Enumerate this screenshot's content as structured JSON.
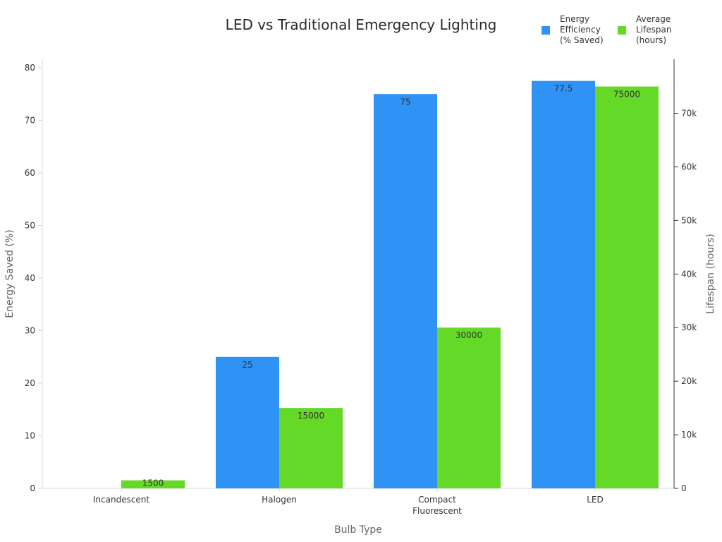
{
  "chart_data": {
    "type": "bar",
    "title": "LED vs Traditional Emergency Lighting",
    "xlabel": "Bulb Type",
    "ylabel": "Energy Saved (%)",
    "y2label": "Lifespan (hours)",
    "categories": [
      [
        "Incandescent"
      ],
      [
        "Halogen"
      ],
      [
        "Compact",
        "Fluorescent"
      ],
      [
        "LED"
      ]
    ],
    "ylim": [
      0,
      80
    ],
    "y2lim": [
      0,
      78500
    ],
    "yticks": [
      0,
      10,
      20,
      30,
      40,
      50,
      60,
      70,
      80
    ],
    "y2ticks": [
      0,
      10000,
      20000,
      30000,
      40000,
      50000,
      60000,
      70000
    ],
    "y2tick_labels": [
      "0",
      "10k",
      "20k",
      "30k",
      "40k",
      "50k",
      "60k",
      "70k"
    ],
    "legend_position": "top-right",
    "series": [
      {
        "name": [
          "Energy",
          "Efficiency",
          "(% Saved)"
        ],
        "axis": "left",
        "color": "#2f93f6",
        "values": [
          0,
          25,
          75,
          77.5
        ],
        "labels": [
          "",
          "25",
          "75",
          "77.5"
        ]
      },
      {
        "name": [
          "Average",
          "Lifespan",
          "(hours)"
        ],
        "axis": "right",
        "color": "#65d927",
        "values": [
          1500,
          15000,
          30000,
          75000
        ],
        "labels": [
          "1500",
          "15000",
          "30000",
          "75000"
        ]
      }
    ]
  }
}
